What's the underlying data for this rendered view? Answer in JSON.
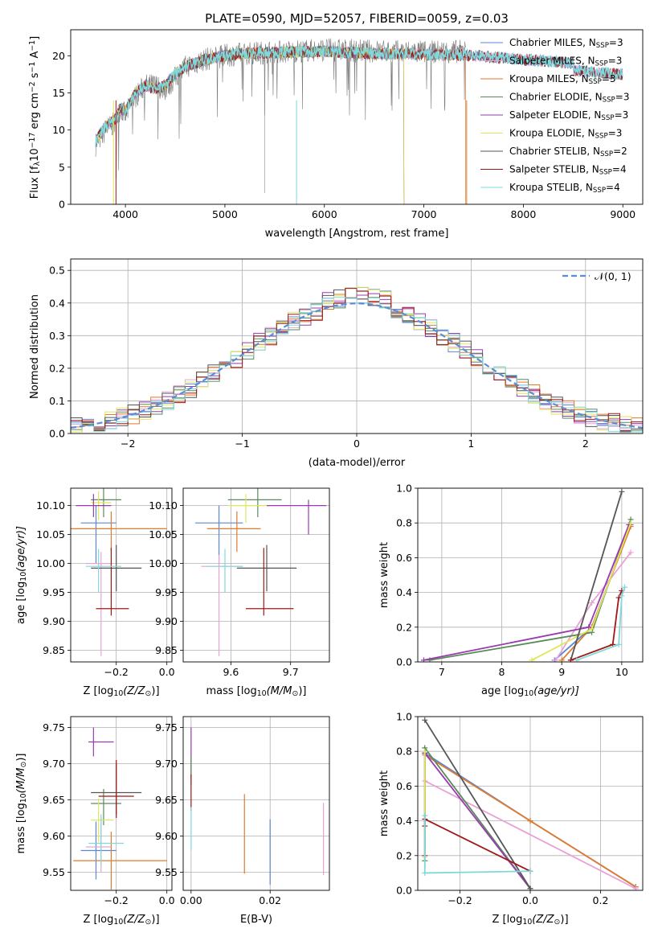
{
  "figure_title": "PLATE=0590, MJD=52057, FIBERID=0059, z=0.03",
  "colors": {
    "Chabrier MILES": "#5b86d6",
    "Salpeter MILES": "#e8a2d6",
    "Kroupa MILES": "#e07a2e",
    "Chabrier ELODIE": "#5a8a5a",
    "Salpeter ELODIE": "#9a3ab0",
    "Kroupa ELODIE": "#dfe65a",
    "Chabrier STELIB": "#555555",
    "Salpeter STELIB": "#a01818",
    "Kroupa STELIB": "#7fd9dc"
  },
  "chart_data": [
    {
      "id": "spectrum",
      "type": "line",
      "title": "PLATE=0590, MJD=52057, FIBERID=0059, z=0.03",
      "xlabel": "wavelength [Angstrom, rest frame]",
      "ylabel_parts": [
        "Flux [f",
        "λ",
        "10",
        "−17",
        " erg cm",
        "−2",
        " s",
        "−1",
        " A",
        "−1",
        "]"
      ],
      "xlim": [
        3450,
        9200
      ],
      "ylim": [
        0,
        23.5
      ],
      "xticks": [
        4000,
        5000,
        6000,
        7000,
        8000,
        9000
      ],
      "yticks": [
        0,
        5,
        10,
        15,
        20
      ],
      "grid": false,
      "legend_location": "upper right",
      "legend": [
        {
          "label": "Chabrier MILES, N",
          "sub": "SSP",
          "suffix": "=3"
        },
        {
          "label": "Salpeter MILES, N",
          "sub": "SSP",
          "suffix": "=3"
        },
        {
          "label": "Kroupa MILES, N",
          "sub": "SSP",
          "suffix": "=3"
        },
        {
          "label": "Chabrier ELODIE, N",
          "sub": "SSP",
          "suffix": "=3"
        },
        {
          "label": "Salpeter ELODIE, N",
          "sub": "SSP",
          "suffix": "=3"
        },
        {
          "label": "Kroupa ELODIE, N",
          "sub": "SSP",
          "suffix": "=3"
        },
        {
          "label": "Chabrier STELIB, N",
          "sub": "SSP",
          "suffix": "=2"
        },
        {
          "label": "Salpeter STELIB, N",
          "sub": "SSP",
          "suffix": "=4"
        },
        {
          "label": "Kroupa STELIB, N",
          "sub": "SSP",
          "suffix": "=4"
        }
      ],
      "data_continuum": {
        "x": [
          3700,
          3800,
          3900,
          3950,
          4000,
          4100,
          4200,
          4300,
          4400,
          4500,
          4600,
          4800,
          5000,
          5200,
          5500,
          6000,
          6500,
          7000,
          7400
        ],
        "y": [
          8,
          10,
          11,
          13,
          12,
          14.5,
          16,
          16,
          15.5,
          17,
          18.5,
          19.5,
          20,
          20.3,
          20.5,
          20.8,
          20.6,
          20.5,
          20.6
        ]
      },
      "model_continuum": {
        "x": [
          3700,
          3800,
          3900,
          3950,
          4000,
          4100,
          4200,
          4300,
          4400,
          4500,
          4600,
          4800,
          5000,
          5200,
          5500,
          6000,
          6500,
          7000,
          7500,
          8000,
          8500,
          9000
        ],
        "y": [
          8.5,
          10.5,
          11.5,
          13,
          12.5,
          15,
          16,
          15.5,
          16,
          17.5,
          18.5,
          19.5,
          20,
          20.3,
          20.4,
          20.6,
          20.3,
          20.2,
          20,
          19.5,
          19,
          18.5
        ]
      }
    },
    {
      "id": "residual_histogram",
      "type": "histogram",
      "xlabel": "(data-model)/error",
      "ylabel": "Normed distribution",
      "xlim": [
        -2.5,
        2.5
      ],
      "ylim": [
        0,
        0.535
      ],
      "xticks": [
        -2,
        -1,
        0,
        1,
        2
      ],
      "yticks": [
        0.0,
        0.1,
        0.2,
        0.3,
        0.4,
        0.5
      ],
      "grid": true,
      "legend_location": "upper right",
      "reference_label": "𝒩(0, 1)"
    },
    {
      "id": "age_vs_Z",
      "type": "errorbar",
      "xlabel_parts": [
        "Z [log",
        "10",
        "(Z/Z",
        "⊙",
        ")]"
      ],
      "ylabel_parts": [
        "age  [log",
        "10",
        "(age/yr)]"
      ],
      "xlim": [
        -0.38,
        0.02
      ],
      "ylim": [
        9.83,
        10.13
      ],
      "xticks": [
        -0.2,
        0.0
      ],
      "yticks": [
        9.85,
        9.9,
        9.95,
        10.0,
        10.05,
        10.1
      ],
      "grid": true,
      "points": [
        {
          "series": "Chabrier MILES",
          "x": -0.28,
          "y": 10.07,
          "xerr": [
            0.06,
            0.08
          ],
          "yerr": [
            0.07,
            0.03
          ]
        },
        {
          "series": "Kroupa MILES",
          "x": -0.22,
          "y": 10.06,
          "xerr": [
            0.16,
            0.22
          ],
          "yerr": [
            0.04,
            0.03
          ]
        },
        {
          "series": "Salpeter MILES",
          "x": -0.26,
          "y": 10.0,
          "xerr": [
            0.06,
            0.04
          ],
          "yerr": [
            0.16,
            0.02
          ]
        },
        {
          "series": "Chabrier ELODIE",
          "x": -0.25,
          "y": 10.11,
          "xerr": [
            0.05,
            0.07
          ],
          "yerr": [
            0.03,
            0.02
          ]
        },
        {
          "series": "Kroupa ELODIE",
          "x": -0.27,
          "y": 10.105,
          "xerr": [
            0.03,
            0.05
          ],
          "yerr": [
            0.03,
            0.02
          ]
        },
        {
          "series": "Salpeter ELODIE",
          "x": -0.29,
          "y": 10.1,
          "xerr": [
            0.07,
            0.07
          ],
          "yerr": [
            0.02,
            0.02
          ]
        },
        {
          "series": "Chabrier STELIB",
          "x": -0.2,
          "y": 9.992,
          "xerr": [
            0.1,
            0.1
          ],
          "yerr": [
            0.04,
            0.04
          ]
        },
        {
          "series": "Salpeter STELIB",
          "x": -0.22,
          "y": 9.922,
          "xerr": [
            0.06,
            0.07
          ],
          "yerr": [
            0.012,
            0.105
          ]
        },
        {
          "series": "Kroupa STELIB",
          "x": -0.27,
          "y": 9.995,
          "xerr": [
            0.05,
            0.09
          ],
          "yerr": [
            0.045,
            0.03
          ]
        }
      ]
    },
    {
      "id": "age_vs_mass",
      "type": "errorbar",
      "xlabel_parts": [
        "mass [log",
        "10",
        "(M/M",
        "⊙",
        ")]"
      ],
      "ylabel_parts": [],
      "xlim": [
        9.52,
        9.765
      ],
      "ylim": [
        9.83,
        10.13
      ],
      "xticks": [
        9.6,
        9.7
      ],
      "yticks": [
        9.85,
        9.9,
        9.95,
        10.0,
        10.05,
        10.1
      ],
      "grid": true,
      "points": [
        {
          "series": "Chabrier MILES",
          "x": 9.58,
          "y": 10.07,
          "xerr": [
            0.04,
            0.04
          ],
          "yerr": [
            0.07,
            0.03
          ]
        },
        {
          "series": "Kroupa MILES",
          "x": 9.61,
          "y": 10.06,
          "xerr": [
            0.05,
            0.04
          ],
          "yerr": [
            0.04,
            0.03
          ]
        },
        {
          "series": "Salpeter MILES",
          "x": 9.58,
          "y": 9.995,
          "xerr": [
            0.03,
            0.04
          ],
          "yerr": [
            0.155,
            0.02
          ]
        },
        {
          "series": "Chabrier ELODIE",
          "x": 9.645,
          "y": 10.11,
          "xerr": [
            0.05,
            0.04
          ],
          "yerr": [
            0.03,
            0.02
          ]
        },
        {
          "series": "Kroupa ELODIE",
          "x": 9.625,
          "y": 10.1,
          "xerr": [
            0.03,
            0.04
          ],
          "yerr": [
            0.03,
            0.02
          ]
        },
        {
          "series": "Salpeter ELODIE",
          "x": 9.73,
          "y": 10.1,
          "xerr": [
            0.07,
            0.03
          ],
          "yerr": [
            0.05,
            0.01
          ]
        },
        {
          "series": "Chabrier STELIB",
          "x": 9.66,
          "y": 9.992,
          "xerr": [
            0.05,
            0.05
          ],
          "yerr": [
            0.04,
            0.04
          ]
        },
        {
          "series": "Salpeter STELIB",
          "x": 9.655,
          "y": 9.922,
          "xerr": [
            0.03,
            0.05
          ],
          "yerr": [
            0.012,
            0.105
          ]
        },
        {
          "series": "Kroupa STELIB",
          "x": 9.59,
          "y": 9.995,
          "xerr": [
            0.03,
            0.03
          ],
          "yerr": [
            0.045,
            0.03
          ]
        }
      ]
    },
    {
      "id": "weight_vs_age",
      "type": "line",
      "xlabel_parts": [
        "age  [log",
        "10",
        "(age/yr)]"
      ],
      "ylabel": "mass weight",
      "xlim": [
        6.6,
        10.35
      ],
      "ylim": [
        0,
        1
      ],
      "xticks": [
        7,
        8,
        9,
        10
      ],
      "yticks": [
        0.0,
        0.2,
        0.4,
        0.6,
        0.8,
        1.0
      ],
      "grid": true,
      "series": [
        {
          "name": "Chabrier MILES",
          "x": [
            8.88,
            9.5,
            10.15
          ],
          "y": [
            0.01,
            0.2,
            0.79
          ]
        },
        {
          "name": "Salpeter MILES",
          "x": [
            8.9,
            9.5,
            10.15
          ],
          "y": [
            0.01,
            0.34,
            0.63
          ]
        },
        {
          "name": "Kroupa MILES",
          "x": [
            9.0,
            9.5,
            10.15
          ],
          "y": [
            0.01,
            0.2,
            0.78
          ]
        },
        {
          "name": "Chabrier ELODIE",
          "x": [
            6.8,
            9.5,
            10.15
          ],
          "y": [
            0.01,
            0.17,
            0.82
          ]
        },
        {
          "name": "Salpeter ELODIE",
          "x": [
            6.7,
            9.45,
            10.12
          ],
          "y": [
            0.01,
            0.2,
            0.79
          ]
        },
        {
          "name": "Kroupa ELODIE",
          "x": [
            8.5,
            9.5,
            10.15
          ],
          "y": [
            0.01,
            0.19,
            0.8
          ]
        },
        {
          "name": "Chabrier STELIB",
          "x": [
            9.15,
            10.0
          ],
          "y": [
            0.01,
            0.98
          ]
        },
        {
          "name": "Salpeter STELIB",
          "x": [
            9.15,
            9.85,
            9.95,
            10.0
          ],
          "y": [
            0.01,
            0.1,
            0.37,
            0.41
          ]
        },
        {
          "name": "Kroupa STELIB",
          "x": [
            9.25,
            9.95,
            10.0,
            10.05
          ],
          "y": [
            0.01,
            0.1,
            0.38,
            0.43
          ]
        }
      ]
    },
    {
      "id": "mass_vs_Z",
      "type": "errorbar",
      "xlabel_parts": [
        "Z [log",
        "10",
        "(Z/Z",
        "⊙",
        ")]"
      ],
      "ylabel_parts": [
        "mass [log",
        "10",
        "(M/M",
        "⊙",
        ")]"
      ],
      "xlim": [
        -0.38,
        0.02
      ],
      "ylim": [
        9.525,
        9.765
      ],
      "xticks": [
        -0.2,
        0.0
      ],
      "yticks": [
        9.55,
        9.6,
        9.65,
        9.7,
        9.75
      ],
      "grid": true,
      "points": [
        {
          "series": "Chabrier MILES",
          "x": -0.28,
          "y": 9.58,
          "xerr": [
            0.06,
            0.08
          ],
          "yerr": [
            0.04,
            0.04
          ]
        },
        {
          "series": "Kroupa MILES",
          "x": -0.22,
          "y": 9.566,
          "xerr": [
            0.15,
            0.22
          ],
          "yerr": [
            0.04,
            0.04
          ]
        },
        {
          "series": "Salpeter MILES",
          "x": -0.26,
          "y": 9.585,
          "xerr": [
            0.06,
            0.04
          ],
          "yerr": [
            0.035,
            0.04
          ]
        },
        {
          "series": "Chabrier ELODIE",
          "x": -0.25,
          "y": 9.645,
          "xerr": [
            0.05,
            0.07
          ],
          "yerr": [
            0.03,
            0.02
          ]
        },
        {
          "series": "Kroupa ELODIE",
          "x": -0.27,
          "y": 9.622,
          "xerr": [
            0.03,
            0.06
          ],
          "yerr": [
            0.03,
            0.03
          ]
        },
        {
          "series": "Salpeter ELODIE",
          "x": -0.29,
          "y": 9.73,
          "xerr": [
            0.02,
            0.08
          ],
          "yerr": [
            0.02,
            0.02
          ]
        },
        {
          "series": "Chabrier STELIB",
          "x": -0.2,
          "y": 9.66,
          "xerr": [
            0.1,
            0.1
          ],
          "yerr": [
            0.03,
            0.04
          ]
        },
        {
          "series": "Salpeter STELIB",
          "x": -0.2,
          "y": 9.655,
          "xerr": [
            0.07,
            0.07
          ],
          "yerr": [
            0.03,
            0.05
          ]
        },
        {
          "series": "Kroupa STELIB",
          "x": -0.26,
          "y": 9.59,
          "xerr": [
            0.05,
            0.09
          ],
          "yerr": [
            0.03,
            0.04
          ]
        }
      ]
    },
    {
      "id": "mass_vs_EBV",
      "type": "errorbar",
      "xlabel": "E(B-V)",
      "ylabel_parts": [],
      "xlim": [
        -0.002,
        0.035
      ],
      "ylim": [
        9.525,
        9.765
      ],
      "xticks": [
        0.0,
        0.02
      ],
      "yticks": [
        9.55,
        9.6,
        9.65,
        9.7,
        9.75
      ],
      "grid": true,
      "points": [
        {
          "series": "Chabrier MILES",
          "x": 0.02,
          "y": 9.578,
          "yerr": [
            0.045,
            0.045
          ]
        },
        {
          "series": "Kroupa MILES",
          "x": 0.0135,
          "y": 9.603,
          "yerr": [
            0.055,
            0.055
          ]
        },
        {
          "series": "Salpeter MILES",
          "x": 0.0335,
          "y": 9.596,
          "yerr": [
            0.05,
            0.05
          ]
        },
        {
          "series": "Salpeter ELODIE",
          "x": 0.0,
          "y": 9.715,
          "yerr": [
            0.035,
            0.035
          ]
        },
        {
          "series": "Chabrier ELODIE",
          "x": 0.0,
          "y": 9.69,
          "yerr": [
            0.02,
            0.02
          ]
        },
        {
          "series": "Salpeter STELIB",
          "x": 0.0,
          "y": 9.66,
          "yerr": [
            0.025,
            0.025
          ]
        },
        {
          "series": "Kroupa STELIB",
          "x": 0.0,
          "y": 9.61,
          "yerr": [
            0.03,
            0.03
          ]
        }
      ]
    },
    {
      "id": "weight_vs_Z",
      "type": "line",
      "xlabel_parts": [
        "Z [log",
        "10",
        "(Z/Z",
        "⊙",
        ")]"
      ],
      "ylabel": "mass weight",
      "xlim": [
        -0.32,
        0.32
      ],
      "ylim": [
        0,
        1
      ],
      "xticks": [
        -0.2,
        0.0,
        0.2
      ],
      "yticks": [
        0.0,
        0.2,
        0.4,
        0.6,
        0.8,
        1.0
      ],
      "grid": true,
      "series": [
        {
          "name": "Chabrier MILES",
          "x": [
            -0.3,
            0.0,
            0.3
          ],
          "y": [
            0.79,
            0.4,
            0.02
          ]
        },
        {
          "name": "Kroupa MILES",
          "x": [
            -0.3,
            -0.3,
            0.0,
            0.3
          ],
          "y": [
            0.2,
            0.78,
            0.4,
            0.02
          ]
        },
        {
          "name": "Salpeter MILES",
          "x": [
            -0.3,
            0.3
          ],
          "y": [
            0.63,
            0.01
          ]
        },
        {
          "name": "Chabrier ELODIE",
          "x": [
            -0.3,
            -0.3,
            0.0
          ],
          "y": [
            0.17,
            0.82,
            0.01
          ]
        },
        {
          "name": "Salpeter ELODIE",
          "x": [
            -0.3,
            -0.3,
            0.0
          ],
          "y": [
            0.2,
            0.79,
            0.01
          ]
        },
        {
          "name": "Kroupa ELODIE",
          "x": [
            -0.3,
            -0.3
          ],
          "y": [
            0.19,
            0.8
          ]
        },
        {
          "name": "Chabrier STELIB",
          "x": [
            -0.3,
            0.0
          ],
          "y": [
            0.98,
            0.01
          ]
        },
        {
          "name": "Salpeter STELIB",
          "x": [
            -0.3,
            -0.3,
            0.0
          ],
          "y": [
            0.37,
            0.41,
            0.11
          ]
        },
        {
          "name": "Kroupa STELIB",
          "x": [
            -0.3,
            -0.3,
            0.0
          ],
          "y": [
            0.43,
            0.1,
            0.11
          ]
        }
      ]
    }
  ]
}
